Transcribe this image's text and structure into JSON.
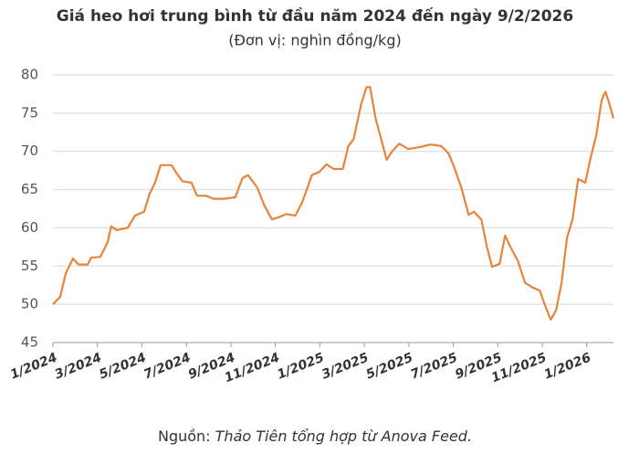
{
  "chart_data": {
    "type": "line",
    "title": "Giá heo hơi trung bình từ đầu năm 2024 đến ngày 9/2/2026",
    "subtitle": "(Đơn vị: nghìn đồng/kg)",
    "source_label": "Nguồn:",
    "source_text": "Thảo Tiên tổng hợp từ Anova Feed.",
    "x": [
      0,
      0.33,
      0.57,
      0.9,
      1.15,
      1.56,
      1.72,
      2.13,
      2.46,
      2.62,
      2.87,
      3.36,
      3.69,
      4.1,
      4.34,
      4.59,
      4.84,
      5.33,
      5.57,
      5.82,
      6.23,
      6.48,
      6.89,
      7.21,
      7.7,
      8.2,
      8.52,
      8.77,
      9.18,
      9.51,
      9.84,
      10.16,
      10.49,
      10.9,
      11.23,
      11.64,
      11.97,
      12.3,
      12.62,
      13.03,
      13.28,
      13.52,
      13.85,
      14.1,
      14.26,
      14.51,
      14.84,
      15,
      15.25,
      15.57,
      15.98,
      16.56,
      16.97,
      17.46,
      17.79,
      18.03,
      18.36,
      18.69,
      18.93,
      19.26,
      19.51,
      19.75,
      20.08,
      20.33,
      20.57,
      20.9,
      21.23,
      21.56,
      21.89,
      22.13,
      22.38,
      22.62,
      22.87,
      23.11,
      23.36,
      23.61,
      23.93,
      24.18,
      24.43,
      24.67,
      24.84,
      25,
      25.2
    ],
    "series": [
      {
        "name": "Giá heo hơi",
        "color": "#e8843a",
        "values": [
          50,
          51,
          54,
          56,
          55.2,
          55.2,
          56.1,
          56.2,
          58.1,
          60.2,
          59.7,
          60,
          61.6,
          62.1,
          64.4,
          65.9,
          68.2,
          68.2,
          67.1,
          66.1,
          65.9,
          64.2,
          64.2,
          63.8,
          63.8,
          64,
          66.5,
          66.9,
          65.3,
          62.9,
          61.1,
          61.4,
          61.8,
          61.6,
          63.5,
          66.9,
          67.3,
          68.3,
          67.7,
          67.7,
          70.7,
          71.6,
          76.1,
          78.4,
          78.4,
          74.3,
          70.7,
          68.9,
          70,
          71,
          70.3,
          70.6,
          70.9,
          70.7,
          69.7,
          68,
          65.3,
          61.7,
          62.1,
          61.1,
          57.5,
          54.9,
          55.3,
          59,
          57.5,
          55.7,
          52.8,
          52.2,
          51.8,
          49.8,
          48,
          49.2,
          52.8,
          58.7,
          61.1,
          66.4,
          65.9,
          69.2,
          72.1,
          76.7,
          77.8,
          76.4,
          74.3
        ]
      }
    ],
    "xlim": [
      0,
      25.2
    ],
    "xticks": [
      {
        "value": 0,
        "label": "1/2024"
      },
      {
        "value": 2,
        "label": "3/2024"
      },
      {
        "value": 4,
        "label": "5/2024"
      },
      {
        "value": 6,
        "label": "7/2024"
      },
      {
        "value": 8,
        "label": "9/2024"
      },
      {
        "value": 10,
        "label": "11/2024"
      },
      {
        "value": 12,
        "label": "1/2025"
      },
      {
        "value": 14,
        "label": "3/2025"
      },
      {
        "value": 16,
        "label": "5/2025"
      },
      {
        "value": 18,
        "label": "7/2025"
      },
      {
        "value": 20,
        "label": "9/2025"
      },
      {
        "value": 22,
        "label": "11/2025"
      },
      {
        "value": 24,
        "label": "1/2026"
      }
    ],
    "ylim": [
      45,
      80
    ],
    "yticks": [
      45,
      50,
      55,
      60,
      65,
      70,
      75,
      80
    ],
    "grid": true
  }
}
